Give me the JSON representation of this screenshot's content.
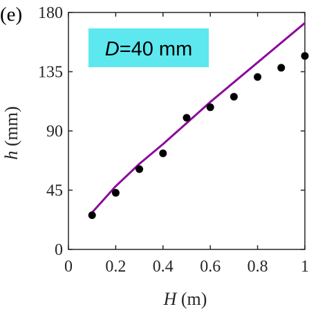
{
  "panel_label": "(e)",
  "chart_data": {
    "type": "scatter",
    "xlabel": {
      "var": "H",
      "unit": " (m)"
    },
    "ylabel": {
      "var": "h",
      "unit": " (mm)"
    },
    "xlim": [
      0,
      1
    ],
    "ylim": [
      0,
      180
    ],
    "xticks": [
      0,
      0.2,
      0.4,
      0.6,
      0.8,
      1
    ],
    "xtick_labels": [
      "0",
      "0.2",
      "0.4",
      "0.6",
      "0.8",
      "1"
    ],
    "yticks": [
      0,
      45,
      90,
      135,
      180
    ],
    "ytick_labels": [
      "0",
      "45",
      "90",
      "135",
      "180"
    ],
    "grid": false,
    "annotation": {
      "var": "D",
      "rest": "=40 mm",
      "background": "#5ce8ee"
    },
    "series": [
      {
        "kind": "points",
        "color": "#000000",
        "x": [
          0.1,
          0.2,
          0.3,
          0.4,
          0.5,
          0.6,
          0.7,
          0.8,
          0.9,
          1.0
        ],
        "y": [
          26,
          43,
          61,
          73,
          100,
          108,
          116,
          131,
          138,
          147
        ]
      },
      {
        "kind": "line",
        "color": "#8b0a9c",
        "x": [
          0.1,
          0.2,
          0.3,
          0.4,
          0.5,
          0.6,
          0.7,
          0.8,
          0.9,
          1.0
        ],
        "y": [
          28,
          48,
          65,
          80,
          96,
          112,
          127,
          142,
          157,
          172
        ]
      }
    ]
  }
}
